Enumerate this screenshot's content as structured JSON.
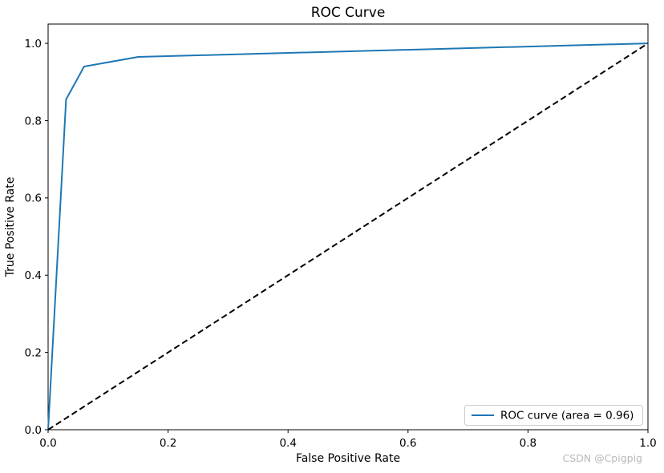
{
  "chart_data": {
    "type": "line",
    "title": "ROC Curve",
    "xlabel": "False Positive Rate",
    "ylabel": "True Positive Rate",
    "xlim": [
      0.0,
      1.0
    ],
    "ylim": [
      0.0,
      1.05
    ],
    "xticks": [
      "0.0",
      "0.2",
      "0.4",
      "0.6",
      "0.8",
      "1.0"
    ],
    "yticks": [
      "0.0",
      "0.2",
      "0.4",
      "0.6",
      "0.8",
      "1.0"
    ],
    "grid": false,
    "legend": {
      "position": "lower right",
      "entries": [
        "ROC curve (area = 0.96)"
      ]
    },
    "series": [
      {
        "label": "ROC curve (area = 0.96)",
        "color": "#1f77b4",
        "style": "solid",
        "x": [
          0.0,
          0.03,
          0.06,
          0.15,
          1.0
        ],
        "y": [
          0.0,
          0.855,
          0.94,
          0.965,
          1.0
        ]
      },
      {
        "label": "",
        "color": "#000000",
        "style": "dashed",
        "x": [
          0.0,
          1.0
        ],
        "y": [
          0.0,
          1.0
        ]
      }
    ]
  },
  "watermark": {
    "text": "CSDN @Cpigpig",
    "color": "#b9b9b9"
  }
}
